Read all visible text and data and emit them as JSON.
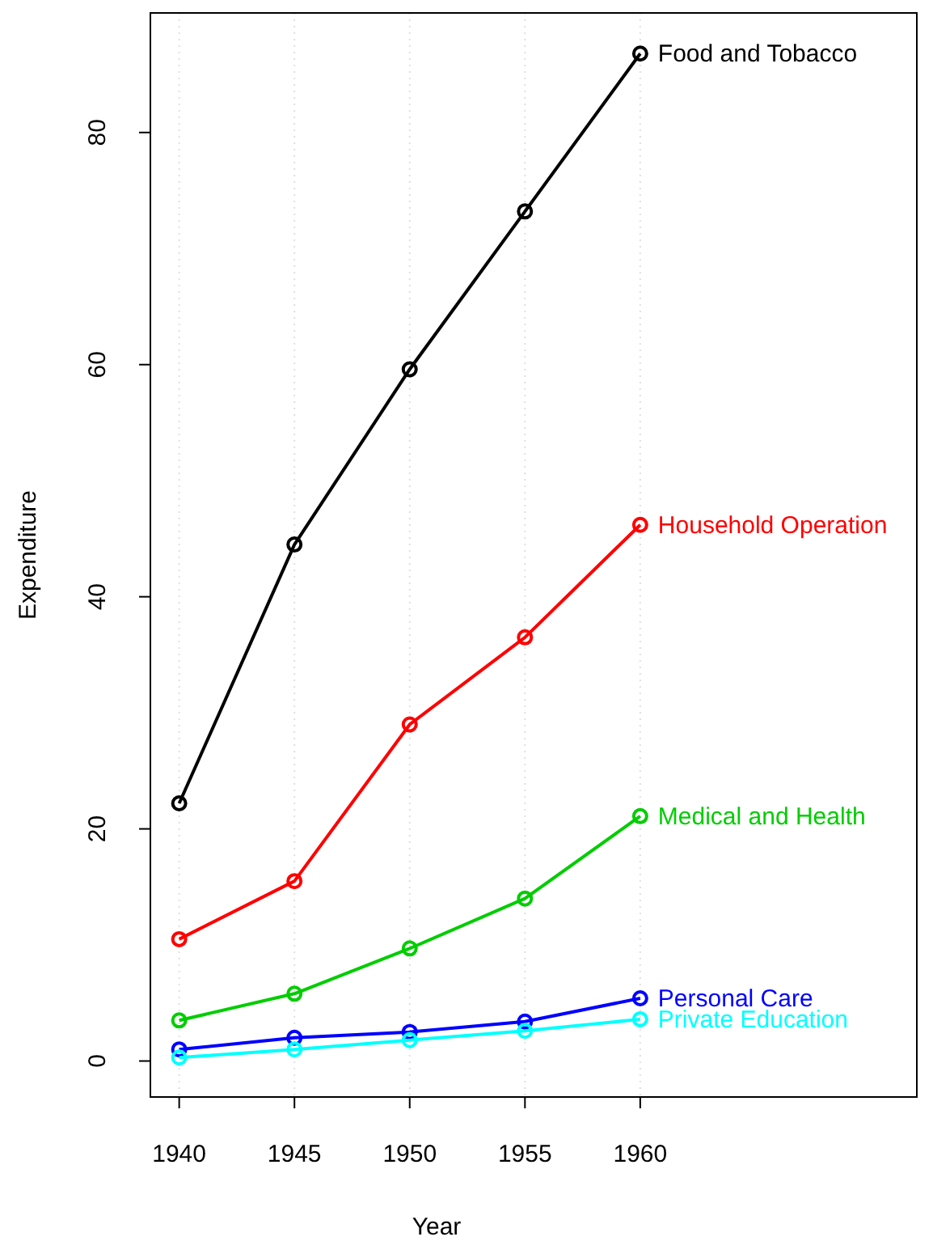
{
  "chart_data": {
    "type": "line",
    "xlabel": "Year",
    "ylabel": "Expenditure",
    "x": [
      1940,
      1945,
      1950,
      1955,
      1960
    ],
    "xlim": [
      1938.75,
      1972
    ],
    "ylim": [
      -3.1,
      90.3
    ],
    "xticks": [
      1940,
      1945,
      1950,
      1955,
      1960
    ],
    "yticks": [
      0,
      20,
      40,
      60,
      80
    ],
    "grid": "x",
    "marker": "circle",
    "line_style": "solid",
    "series": [
      {
        "name": "Food and Tobacco",
        "color": "#000000",
        "values": [
          22.2,
          44.5,
          59.6,
          73.2,
          86.8
        ]
      },
      {
        "name": "Household Operation",
        "color": "#ff0000",
        "values": [
          10.5,
          15.5,
          29.0,
          36.5,
          46.2
        ]
      },
      {
        "name": "Medical and Health",
        "color": "#00cd00",
        "values": [
          3.5,
          5.8,
          9.7,
          14.0,
          21.1
        ]
      },
      {
        "name": "Personal Care",
        "color": "#0000ff",
        "values": [
          1.0,
          2.0,
          2.5,
          3.4,
          5.4
        ]
      },
      {
        "name": "Private Education",
        "color": "#00ffff",
        "values": [
          0.3,
          1.0,
          1.8,
          2.6,
          3.6
        ]
      }
    ]
  }
}
